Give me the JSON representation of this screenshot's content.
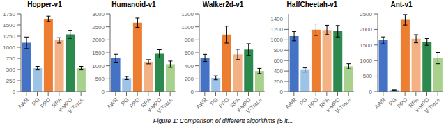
{
  "chart_data": [
    {
      "type": "bar",
      "title": "Hopper-v1",
      "categories": [
        "AWR",
        "PG",
        "PPO",
        "RPA",
        "V-MPO",
        "V-Trace"
      ],
      "values": [
        1100,
        530,
        1640,
        1155,
        1290,
        530
      ],
      "errors": [
        130,
        40,
        60,
        60,
        90,
        40
      ],
      "colors": [
        "#4472c4",
        "#9dc3e6",
        "#ed7d31",
        "#f4b183",
        "#2d8a4e",
        "#a9d18e"
      ],
      "ylim": [
        0,
        1750
      ],
      "yticks": [
        0,
        250,
        500,
        750,
        1000,
        1250,
        1500,
        1750
      ],
      "grid": false
    },
    {
      "type": "bar",
      "title": "Humanoid-v1",
      "categories": [
        "AWR",
        "PG",
        "PPO",
        "RPA",
        "V-MPO",
        "V-Trace"
      ],
      "values": [
        1290,
        530,
        2660,
        1155,
        1460,
        1060
      ],
      "errors": [
        150,
        60,
        180,
        80,
        160,
        120
      ],
      "colors": [
        "#4472c4",
        "#9dc3e6",
        "#ed7d31",
        "#f4b183",
        "#2d8a4e",
        "#a9d18e"
      ],
      "ylim": [
        0,
        3000
      ],
      "yticks": [
        0,
        500,
        1000,
        1500,
        2000,
        2500,
        3000
      ],
      "grid": false
    },
    {
      "type": "bar",
      "title": "Walker2d-v1",
      "categories": [
        "AWR",
        "PG",
        "PPO",
        "RPA",
        "V-MPO",
        "V-Trace"
      ],
      "values": [
        520,
        215,
        880,
        575,
        650,
        320
      ],
      "errors": [
        55,
        30,
        130,
        80,
        90,
        40
      ],
      "colors": [
        "#4472c4",
        "#9dc3e6",
        "#ed7d31",
        "#f4b183",
        "#2d8a4e",
        "#a9d18e"
      ],
      "ylim": [
        0,
        1200
      ],
      "yticks": [
        0,
        200,
        400,
        600,
        800,
        1000,
        1200
      ],
      "grid": false
    },
    {
      "type": "bar",
      "title": "HalfCheetah-v1",
      "categories": [
        "AWR",
        "PG",
        "PPO",
        "RPA",
        "V-MPO",
        "V-Trace"
      ],
      "values": [
        1070,
        420,
        1195,
        1190,
        1165,
        490
      ],
      "errors": [
        90,
        40,
        110,
        90,
        110,
        50
      ],
      "colors": [
        "#4472c4",
        "#9dc3e6",
        "#ed7d31",
        "#f4b183",
        "#2d8a4e",
        "#a9d18e"
      ],
      "ylim": [
        0,
        1500
      ],
      "yticks": [
        0,
        200,
        400,
        600,
        800,
        1000,
        1200,
        1400
      ],
      "grid": false
    },
    {
      "type": "bar",
      "title": "Ant-v1",
      "categories": [
        "AWR",
        "PG",
        "PPO",
        "RPA",
        "V-MPO",
        "V-Trace"
      ],
      "values": [
        1650,
        50,
        2310,
        1700,
        1600,
        1080
      ],
      "errors": [
        110,
        20,
        170,
        130,
        110,
        180
      ],
      "colors": [
        "#4472c4",
        "#9dc3e6",
        "#ed7d31",
        "#f4b183",
        "#2d8a4e",
        "#a9d18e"
      ],
      "ylim": [
        0,
        2500
      ],
      "yticks": [
        0,
        500,
        1000,
        1500,
        2000,
        2500
      ],
      "grid": false
    }
  ],
  "caption": "Figure 1: Comparison of different algorithms (5 it..."
}
